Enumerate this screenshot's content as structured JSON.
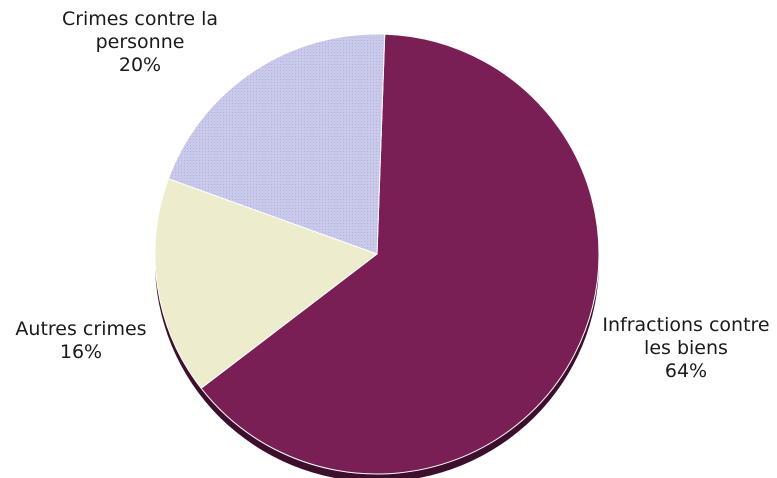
{
  "chart_data": {
    "type": "pie",
    "title": "",
    "categories": [
      "Infractions contre les biens",
      "Autres crimes",
      "Crimes contre la personne"
    ],
    "values": [
      64,
      16,
      20
    ],
    "labels": [
      {
        "lines": [
          "Infractions contre",
          "les biens"
        ],
        "percent": "64%"
      },
      {
        "lines": [
          "Autres crimes"
        ],
        "percent": "16%"
      },
      {
        "lines": [
          "Crimes contre la",
          "personne"
        ],
        "percent": "20%"
      }
    ],
    "colors": [
      "#7a1f55",
      "#ededce",
      "#c9c9ec"
    ],
    "edge_color": "#3d0f2c",
    "legend": "none"
  }
}
